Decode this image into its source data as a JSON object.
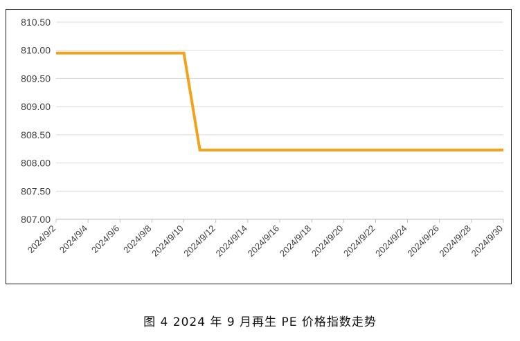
{
  "caption": "图 4  2024 年 9 月再生 PE 价格指数走势",
  "chart_data": {
    "type": "line",
    "title": "",
    "xlabel": "",
    "ylabel": "",
    "ylim": [
      807.0,
      810.5
    ],
    "ytick_values": [
      807.0,
      807.5,
      808.0,
      808.5,
      809.0,
      809.5,
      810.0,
      810.5
    ],
    "ytick_labels": [
      "807.00",
      "807.50",
      "808.00",
      "808.50",
      "809.00",
      "809.50",
      "810.00",
      "810.50"
    ],
    "x_tick_labels": [
      "2024/9/2",
      "2024/9/4",
      "2024/9/6",
      "2024/9/8",
      "2024/9/10",
      "2024/9/12",
      "2024/9/14",
      "2024/9/16",
      "2024/9/18",
      "2024/9/20",
      "2024/9/22",
      "2024/9/24",
      "2024/9/26",
      "2024/9/28",
      "2024/9/30"
    ],
    "x_tick_days": [
      2,
      4,
      6,
      8,
      10,
      12,
      14,
      16,
      18,
      20,
      22,
      24,
      26,
      28,
      30
    ],
    "xlim": [
      "2024/9/2",
      "2024/9/30"
    ],
    "grid": "horizontal",
    "legend": "none",
    "series": [
      {
        "color": "#f2a31b",
        "x": [
          "2024/9/2",
          "2024/9/10",
          "2024/9/11",
          "2024/9/30"
        ],
        "values": [
          809.95,
          809.95,
          808.23,
          808.23
        ]
      }
    ]
  }
}
